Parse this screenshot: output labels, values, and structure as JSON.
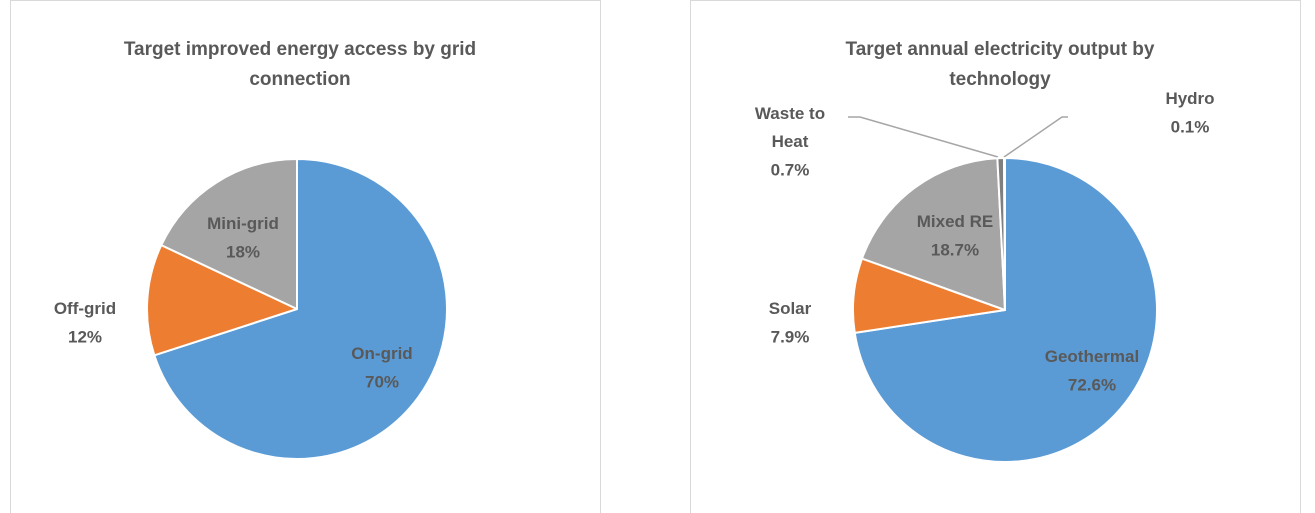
{
  "chart_data": [
    {
      "type": "pie",
      "title": "Target improved energy access by grid connection",
      "categories": [
        "On-grid",
        "Off-grid",
        "Mini-grid"
      ],
      "values": [
        70,
        12,
        18
      ],
      "value_labels": [
        "70%",
        "12%",
        "18%"
      ],
      "colors": [
        "#5b9bd5",
        "#ed7d31",
        "#a5a5a5"
      ]
    },
    {
      "type": "pie",
      "title": "Target annual electricity output by technology",
      "categories": [
        "Geothermal",
        "Solar",
        "Mixed RE",
        "Waste to Heat",
        "Hydro"
      ],
      "values": [
        72.6,
        7.9,
        18.7,
        0.7,
        0.1
      ],
      "value_labels": [
        "72.6%",
        "7.9%",
        "18.7%",
        "0.7%",
        "0.1%"
      ],
      "colors": [
        "#5b9bd5",
        "#ed7d31",
        "#a5a5a5",
        "#7f7f7f",
        "#ffc000"
      ]
    }
  ]
}
